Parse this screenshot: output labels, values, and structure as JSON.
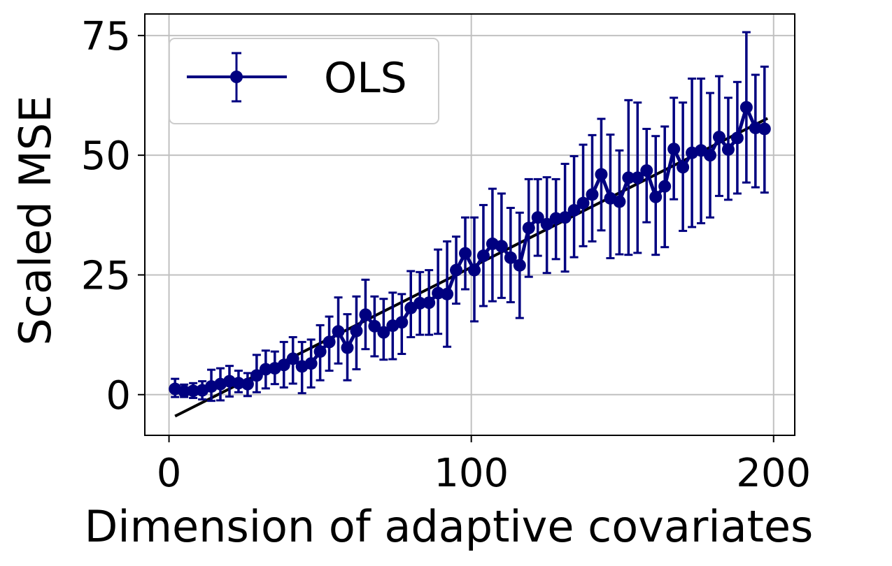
{
  "chart_data": {
    "type": "line",
    "title": "",
    "xlabel": "Dimension of adaptive covariates",
    "ylabel": "Scaled MSE",
    "xlim": [
      -8,
      207
    ],
    "ylim": [
      -8.5,
      79.5
    ],
    "xticks": [
      0,
      100,
      200
    ],
    "yticks": [
      0,
      25,
      50,
      75
    ],
    "grid": true,
    "legend_position": "top-left",
    "colors": {
      "series": "#000080",
      "fit_line": "#000000",
      "grid": "#c0c0c0"
    },
    "series": [
      {
        "name": "OLS",
        "marker": "circle",
        "error_bars": true,
        "x": [
          2,
          5,
          8,
          11,
          14,
          17,
          20,
          23,
          26,
          29,
          32,
          35,
          38,
          41,
          44,
          47,
          50,
          53,
          56,
          59,
          62,
          65,
          68,
          71,
          74,
          77,
          80,
          83,
          86,
          89,
          92,
          95,
          98,
          101,
          104,
          107,
          110,
          113,
          116,
          119,
          122,
          125,
          128,
          131,
          134,
          137,
          140,
          143,
          146,
          149,
          152,
          155,
          158,
          161,
          164,
          167,
          170,
          173,
          176,
          179,
          182,
          185,
          188,
          191,
          194,
          197
        ],
        "y": [
          1.2,
          0.7,
          0.8,
          0.9,
          1.7,
          2.2,
          2.8,
          2.4,
          2.2,
          4.0,
          5.3,
          5.5,
          6.2,
          7.5,
          5.9,
          6.5,
          9.0,
          11.0,
          13.2,
          9.8,
          13.3,
          16.7,
          14.3,
          13.0,
          14.4,
          15.1,
          18.1,
          19.1,
          19.2,
          21.2,
          21.0,
          26.0,
          29.5,
          26.0,
          29.0,
          31.5,
          31.0,
          28.6,
          27.0,
          34.8,
          37.0,
          35.6,
          36.8,
          37.0,
          38.5,
          40.0,
          41.8,
          46.0,
          41.0,
          40.3,
          45.3,
          45.3,
          46.8,
          41.3,
          43.5,
          51.3,
          47.5,
          50.5,
          51.0,
          50.0,
          53.8,
          51.2,
          53.6,
          60.0,
          55.7,
          55.5
        ],
        "err_low": [
          -0.5,
          -0.5,
          -0.7,
          -1.0,
          -1.3,
          -1.2,
          -0.4,
          0.5,
          -0.3,
          0.5,
          1.3,
          2.2,
          1.5,
          2.3,
          0.3,
          1.5,
          3.0,
          5.0,
          6.5,
          3.0,
          5.3,
          9.5,
          8.0,
          7.3,
          7.4,
          8.5,
          12.0,
          12.5,
          12.5,
          12.7,
          10.0,
          19.0,
          22.0,
          15.3,
          18.5,
          19.5,
          20.2,
          19.3,
          16.0,
          24.6,
          29.0,
          25.4,
          28.3,
          25.7,
          28.7,
          31.0,
          32.0,
          34.3,
          28.5,
          29.3,
          29.2,
          29.6,
          36.0,
          29.2,
          30.8,
          40.8,
          34.2,
          35.0,
          35.8,
          37.0,
          41.5,
          40.7,
          42.0,
          44.3,
          43.3,
          42.2
        ],
        "err_high": [
          3.3,
          2.1,
          2.4,
          2.8,
          5.2,
          5.5,
          6.0,
          5.0,
          4.5,
          8.3,
          9.2,
          9.0,
          11.0,
          12.0,
          11.0,
          11.5,
          14.5,
          16.3,
          20.3,
          16.8,
          20.5,
          24.0,
          20.5,
          20.0,
          21.3,
          21.0,
          25.8,
          25.6,
          26.0,
          30.3,
          32.0,
          33.0,
          37.0,
          37.0,
          39.6,
          43.0,
          42.0,
          39.0,
          38.0,
          45.0,
          45.0,
          45.4,
          45.0,
          48.2,
          49.8,
          52.2,
          54.2,
          57.6,
          54.3,
          51.0,
          61.5,
          61.0,
          55.5,
          54.0,
          56.0,
          62.0,
          61.0,
          66.0,
          66.0,
          63.0,
          66.5,
          62.0,
          65.3,
          75.7,
          66.8,
          68.5
        ]
      }
    ],
    "fit_line": {
      "x": [
        2,
        198
      ],
      "y": [
        -4.5,
        57.7
      ]
    }
  }
}
